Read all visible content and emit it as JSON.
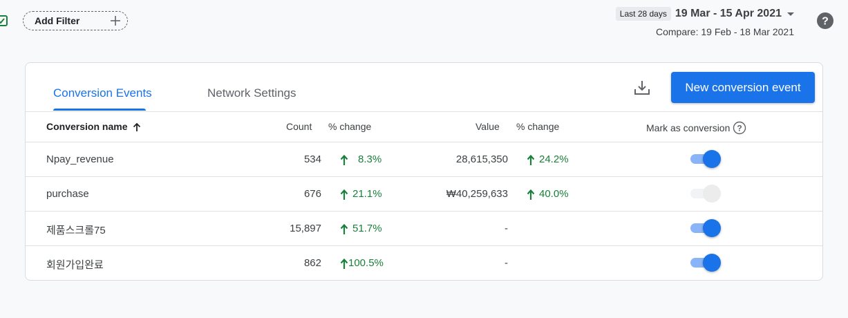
{
  "filter": {
    "add_label": "Add Filter"
  },
  "date": {
    "chip": "Last 28 days",
    "range": "19 Mar - 15 Apr 2021",
    "compare": "Compare: 19 Feb - 18 Mar 2021"
  },
  "tabs": [
    {
      "label": "Conversion Events",
      "active": true
    },
    {
      "label": "Network Settings",
      "active": false
    }
  ],
  "actions": {
    "new_button": "New conversion event"
  },
  "table": {
    "headers": {
      "name": "Conversion name",
      "count": "Count",
      "count_change": "% change",
      "value": "Value",
      "value_change": "% change",
      "mark": "Mark as conversion"
    },
    "rows": [
      {
        "name": "Npay_revenue",
        "count": "534",
        "count_change": "8.3%",
        "value": "28,615,350",
        "value_change": "24.2%",
        "marked": true
      },
      {
        "name": "purchase",
        "count": "676",
        "count_change": "21.1%",
        "value": "₩40,259,633",
        "value_change": "40.0%",
        "marked": false
      },
      {
        "name": "제품스크롤75",
        "count": "15,897",
        "count_change": "51.7%",
        "value": "-",
        "value_change": "",
        "marked": true
      },
      {
        "name": "회원가입완료",
        "count": "862",
        "count_change": "100.5%",
        "value": "-",
        "value_change": "",
        "marked": true
      }
    ]
  },
  "colors": {
    "accent": "#1a73e8",
    "positive": "#188038"
  }
}
